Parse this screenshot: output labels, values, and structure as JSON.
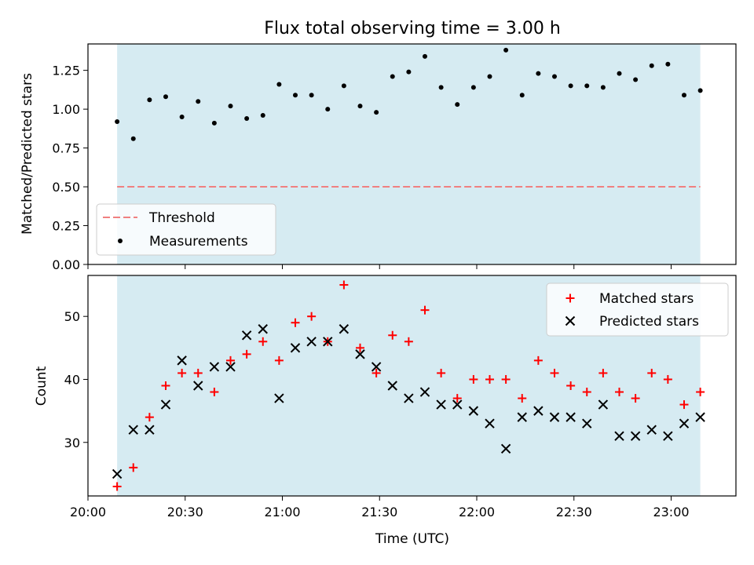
{
  "figure": {
    "title": "Flux total observing time = 3.00 h"
  },
  "colors": {
    "shade": "#add8e6",
    "threshold": "#f08080",
    "measurements": "#000000",
    "matched": "#ff0000",
    "predicted": "#000000"
  },
  "chart_data": [
    {
      "type": "scatter",
      "panel": "top",
      "ylabel": "Matched/Predicted stars",
      "xlim": [
        "20:00",
        "23:20"
      ],
      "ylim": [
        0,
        1.42
      ],
      "yticks": [
        "0.00",
        "0.25",
        "0.50",
        "0.75",
        "1.00",
        "1.25"
      ],
      "ytick_values": [
        0,
        0.25,
        0.5,
        0.75,
        1.0,
        1.25
      ],
      "shaded_span": [
        "20:09",
        "23:09"
      ],
      "threshold": {
        "name": "Threshold",
        "value": 0.5,
        "style": "dashed"
      },
      "legend_position": "lower-left",
      "grid": false,
      "series": [
        {
          "name": "Measurements",
          "x": [
            "20:09",
            "20:14",
            "20:19",
            "20:24",
            "20:29",
            "20:34",
            "20:39",
            "20:44",
            "20:49",
            "20:54",
            "20:59",
            "21:04",
            "21:09",
            "21:14",
            "21:19",
            "21:24",
            "21:29",
            "21:34",
            "21:39",
            "21:44",
            "21:49",
            "21:54",
            "21:59",
            "22:04",
            "22:09",
            "22:14",
            "22:19",
            "22:24",
            "22:29",
            "22:34",
            "22:39",
            "22:44",
            "22:49",
            "22:54",
            "22:59",
            "23:04",
            "23:09"
          ],
          "y": [
            0.92,
            0.81,
            1.06,
            1.08,
            0.95,
            1.05,
            0.91,
            1.02,
            0.94,
            0.96,
            1.16,
            1.09,
            1.09,
            1.0,
            1.15,
            1.02,
            0.98,
            1.21,
            1.24,
            1.34,
            1.14,
            1.03,
            1.14,
            1.21,
            1.38,
            1.09,
            1.23,
            1.21,
            1.15,
            1.15,
            1.14,
            1.23,
            1.19,
            1.28,
            1.29,
            1.09,
            1.12
          ]
        }
      ]
    },
    {
      "type": "scatter",
      "panel": "bottom",
      "xlabel": "Time (UTC)",
      "ylabel": "Count",
      "xlim": [
        "20:00",
        "23:20"
      ],
      "ylim": [
        21.5,
        56.5
      ],
      "yticks": [
        "30",
        "40",
        "50"
      ],
      "ytick_values": [
        30,
        40,
        50
      ],
      "xticks": [
        "20:00",
        "20:30",
        "21:00",
        "21:30",
        "22:00",
        "22:30",
        "23:00"
      ],
      "shaded_span": [
        "20:09",
        "23:09"
      ],
      "legend_position": "upper-right",
      "grid": false,
      "x": [
        "20:09",
        "20:14",
        "20:19",
        "20:24",
        "20:29",
        "20:34",
        "20:39",
        "20:44",
        "20:49",
        "20:54",
        "20:59",
        "21:04",
        "21:09",
        "21:14",
        "21:19",
        "21:24",
        "21:29",
        "21:34",
        "21:39",
        "21:44",
        "21:49",
        "21:54",
        "21:59",
        "22:04",
        "22:09",
        "22:14",
        "22:19",
        "22:24",
        "22:29",
        "22:34",
        "22:39",
        "22:44",
        "22:49",
        "22:54",
        "22:59",
        "23:04",
        "23:09"
      ],
      "series": [
        {
          "name": "Matched stars",
          "marker": "+",
          "y": [
            23,
            26,
            34,
            39,
            41,
            41,
            38,
            43,
            44,
            46,
            43,
            49,
            50,
            46,
            55,
            45,
            41,
            47,
            46,
            51,
            41,
            37,
            40,
            40,
            40,
            37,
            43,
            41,
            39,
            38,
            41,
            38,
            37,
            41,
            40,
            36,
            38
          ]
        },
        {
          "name": "Predicted stars",
          "marker": "x",
          "y": [
            25,
            32,
            32,
            36,
            43,
            39,
            42,
            42,
            47,
            48,
            37,
            45,
            46,
            46,
            48,
            44,
            42,
            39,
            37,
            38,
            36,
            36,
            35,
            33,
            29,
            34,
            35,
            34,
            34,
            33,
            36,
            31,
            31,
            32,
            31,
            33,
            34
          ]
        }
      ]
    }
  ]
}
